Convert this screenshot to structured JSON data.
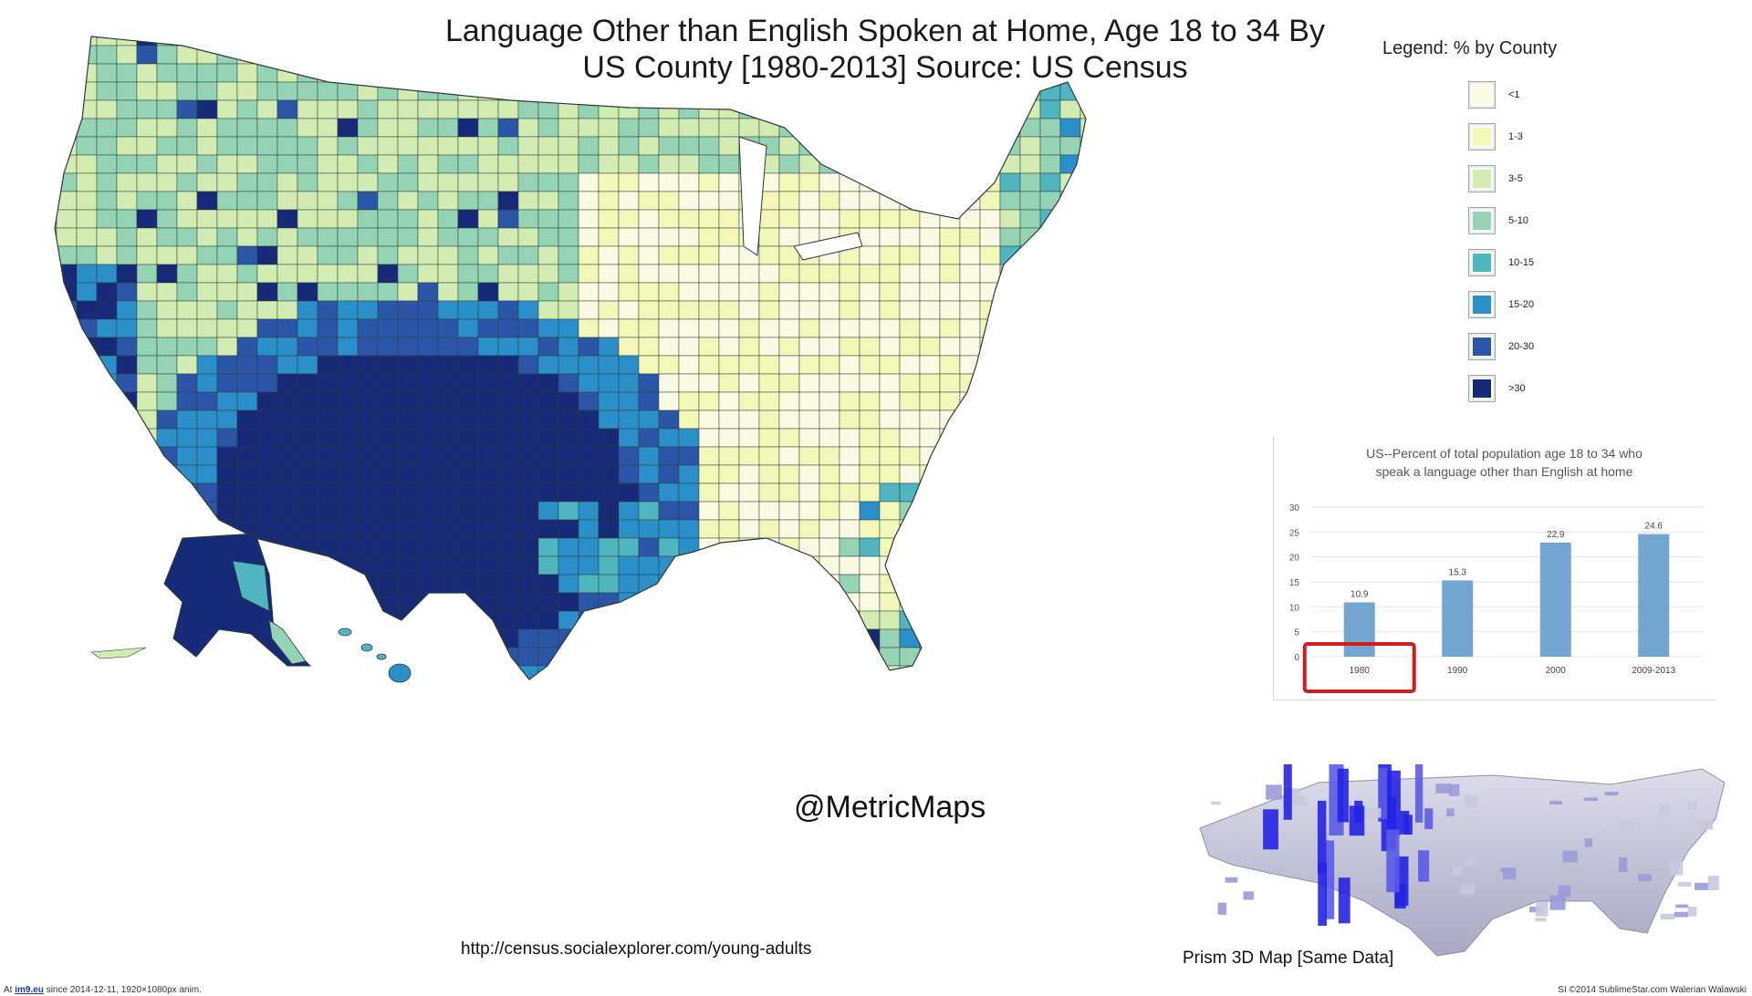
{
  "title": {
    "line1": "Language Other than English Spoken at Home, Age 18 to 34 By",
    "line2": "US County [1980-2013] Source: US Census"
  },
  "legend": {
    "title": "Legend: % by County",
    "items": [
      {
        "label": "<1",
        "color": "#fbfbe3"
      },
      {
        "label": "1-3",
        "color": "#f3f7b8"
      },
      {
        "label": "3-5",
        "color": "#d3ecb1"
      },
      {
        "label": "5-10",
        "color": "#95d3b5"
      },
      {
        "label": "10-15",
        "color": "#4fb5c1"
      },
      {
        "label": "15-20",
        "color": "#2b8fca"
      },
      {
        "label": "20-30",
        "color": "#2b56a8"
      },
      {
        "label": ">30",
        "color": "#162a78"
      }
    ]
  },
  "chart_data": {
    "type": "bar",
    "title": "US--Percent of total population age 18 to 34 who speak a language other than English at home",
    "title_lines": [
      "US--Percent of total population age 18 to 34 who",
      "speak a language other than English at home"
    ],
    "categories": [
      "1980",
      "1990",
      "2000",
      "2009-2013"
    ],
    "values": [
      10.9,
      15.3,
      22.9,
      24.6
    ],
    "ylim": [
      0,
      30
    ],
    "yticks": [
      0,
      5,
      10,
      15,
      20,
      25,
      30
    ],
    "bar_color": "#72a6d1",
    "highlight_category": "1980",
    "highlight_color": "#d41c1c",
    "grid": true
  },
  "handle": "@MetricMaps",
  "source_url": "http://census.socialexplorer.com/young-adults",
  "prism": {
    "caption": "Prism 3D Map [Same Data]"
  },
  "footer": {
    "left_prefix": "At ",
    "left_site": "im9.eu",
    "left_suffix": " since 2014-12-11, 1920×1080px anim.",
    "right": "SI ©2014 SublimeStar.com Walerian Walawski"
  }
}
